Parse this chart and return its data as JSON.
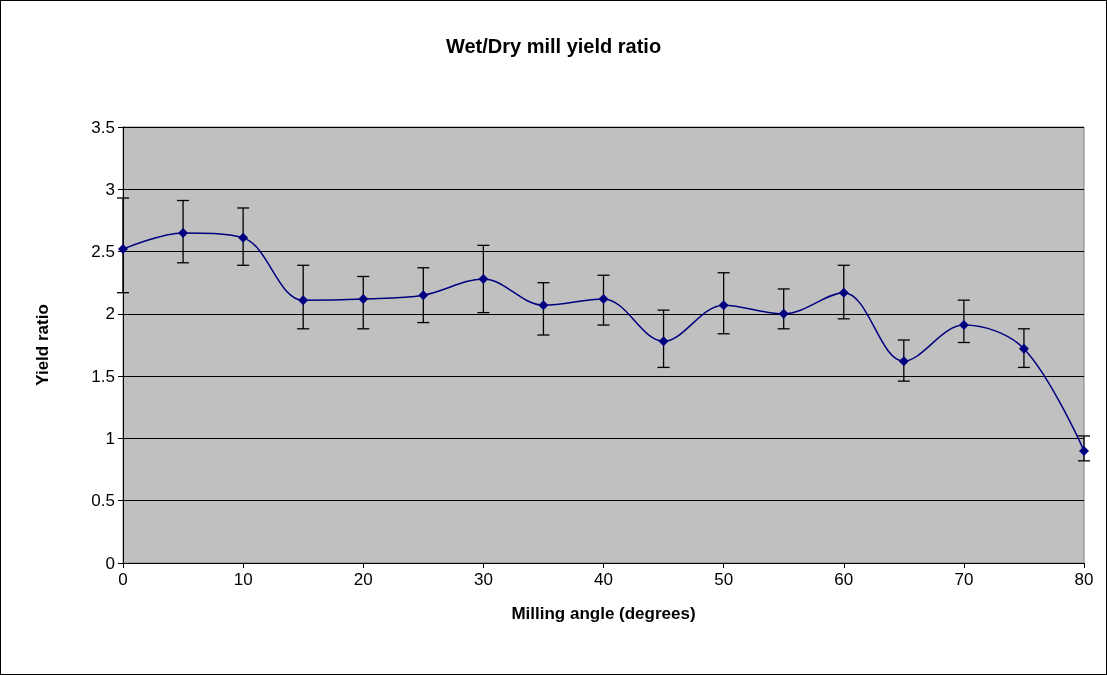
{
  "chart_data": {
    "type": "line",
    "title": "Wet/Dry mill yield ratio",
    "xlabel": "Milling angle (degrees)",
    "ylabel": "Yield ratio",
    "x": [
      0,
      5,
      10,
      15,
      20,
      25,
      30,
      35,
      40,
      45,
      50,
      55,
      60,
      65,
      70,
      75,
      80
    ],
    "series": [
      {
        "color": "#000080",
        "values": [
          2.52,
          2.65,
          2.61,
          2.11,
          2.12,
          2.15,
          2.28,
          2.07,
          2.12,
          1.78,
          2.07,
          2.0,
          2.17,
          1.62,
          1.91,
          1.72,
          0.9
        ],
        "errors": [
          [
            2.17,
            2.93
          ],
          [
            2.41,
            2.91
          ],
          [
            2.39,
            2.85
          ],
          [
            1.88,
            2.39
          ],
          [
            1.88,
            2.3
          ],
          [
            1.93,
            2.37
          ],
          [
            2.01,
            2.55
          ],
          [
            1.83,
            2.25
          ],
          [
            1.91,
            2.31
          ],
          [
            1.57,
            2.03
          ],
          [
            1.84,
            2.33
          ],
          [
            1.88,
            2.2
          ],
          [
            1.96,
            2.39
          ],
          [
            1.46,
            1.79
          ],
          [
            1.77,
            2.11
          ],
          [
            1.57,
            1.88
          ],
          [
            0.82,
            1.02
          ]
        ]
      }
    ],
    "xlim": [
      0,
      80
    ],
    "xticks": [
      0,
      10,
      20,
      30,
      40,
      50,
      60,
      70,
      80
    ],
    "ylim": [
      0,
      3.5
    ],
    "yticks": [
      0,
      0.5,
      1,
      1.5,
      2,
      2.5,
      3,
      3.5
    ],
    "grid": "y",
    "marker": "diamond",
    "line_style": "solid"
  }
}
